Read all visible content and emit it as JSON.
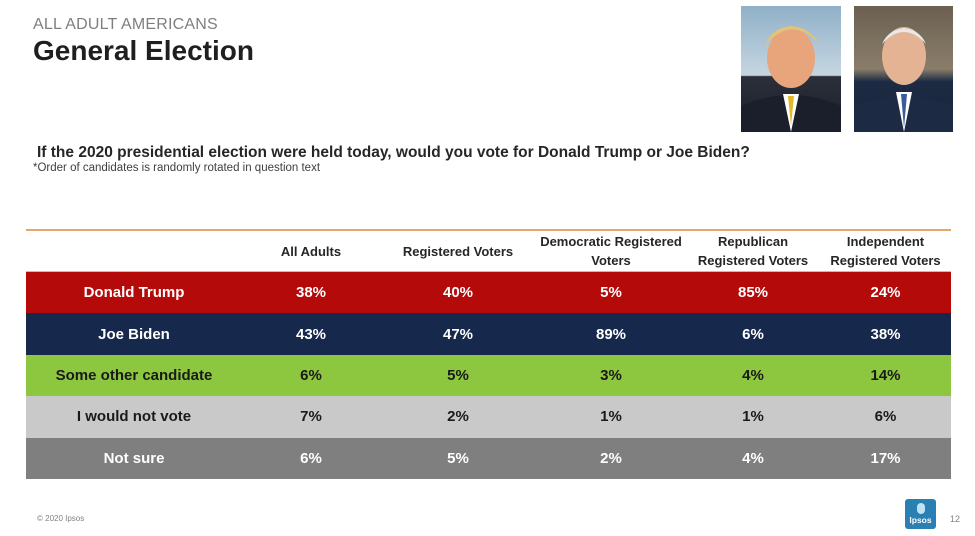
{
  "header": {
    "supertitle": "ALL ADULT AMERICANS",
    "title": "General Election"
  },
  "question": "If the 2020 presidential election were held today, would you vote for Donald Trump or Joe Biden?",
  "footnote": "*Order of candidates is randomly rotated in question text",
  "table": {
    "columns": [
      "All Adults",
      "Registered Voters",
      "Democratic Registered Voters",
      "Republican Registered Voters",
      "Independent Registered Voters"
    ],
    "rows": [
      {
        "label": "Donald Trump",
        "values": [
          "38%",
          "40%",
          "5%",
          "85%",
          "24%"
        ],
        "color": "#b50a0a"
      },
      {
        "label": "Joe Biden",
        "values": [
          "43%",
          "47%",
          "89%",
          "6%",
          "38%"
        ],
        "color": "#16294d"
      },
      {
        "label": "Some other candidate",
        "values": [
          "6%",
          "5%",
          "3%",
          "4%",
          "14%"
        ],
        "color": "#8dc63f"
      },
      {
        "label": "I would not vote",
        "values": [
          "7%",
          "2%",
          "1%",
          "1%",
          "6%"
        ],
        "color": "#c9c9c9"
      },
      {
        "label": "Not sure",
        "values": [
          "6%",
          "5%",
          "2%",
          "4%",
          "17%"
        ],
        "color": "#7f7f7f"
      }
    ]
  },
  "footer": {
    "copyright": "© 2020 Ipsos",
    "page_number": "12",
    "logo_text": "Ipsos"
  }
}
